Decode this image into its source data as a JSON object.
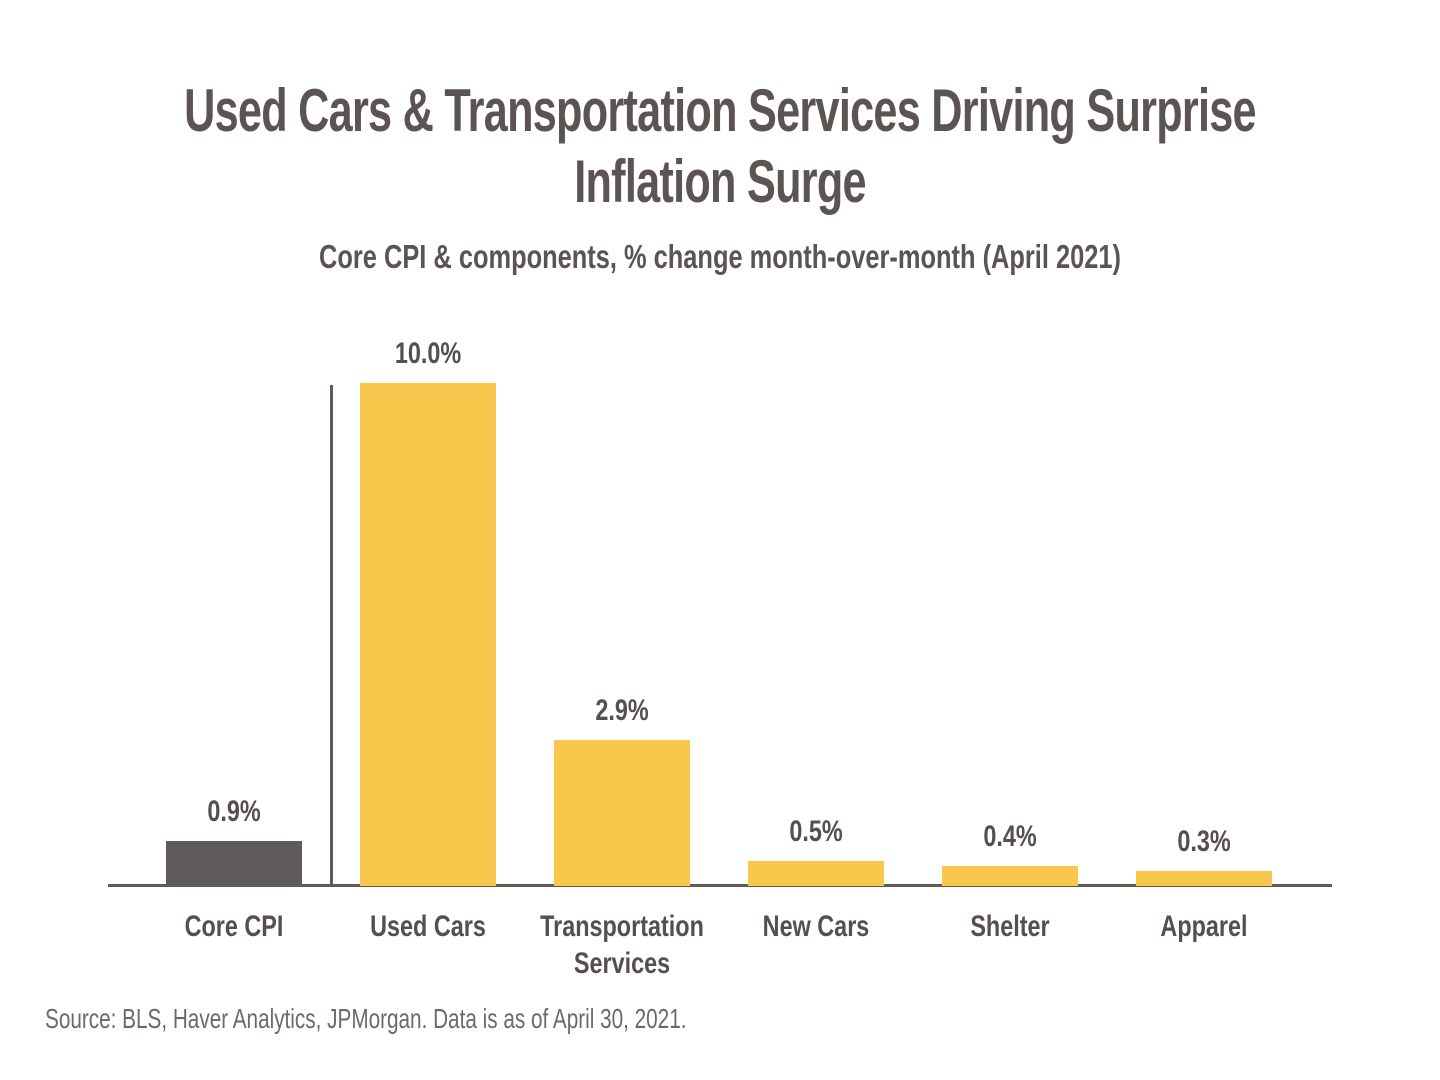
{
  "header": {
    "title_lines": [
      "Used Cars & Transportation Services Driving Surprise",
      "Inflation Surge"
    ],
    "subtitle": "Core CPI & components, % change month-over-month (April 2021)"
  },
  "chart_data": {
    "type": "bar",
    "title": "Used Cars & Transportation Services Driving Surprise Inflation Surge",
    "subtitle": "Core CPI & components, % change month-over-month (April 2021)",
    "categories": [
      "Core CPI",
      "Used Cars",
      "Transportation Services",
      "New Cars",
      "Shelter",
      "Apparel"
    ],
    "values": [
      0.9,
      10.0,
      2.9,
      0.5,
      0.4,
      0.3
    ],
    "value_labels": [
      "0.9%",
      "10.0%",
      "2.9%",
      "0.5%",
      "0.4%",
      "0.3%"
    ],
    "bar_colors": [
      "#605b5b",
      "#fac74d",
      "#fac74d",
      "#fac74d",
      "#fac74d",
      "#fac74d"
    ],
    "xlabel": "",
    "ylabel": "",
    "ylim": [
      0,
      10
    ],
    "grid": false,
    "legend": "none",
    "annotations": "Value labels above each bar; vertical divider line separates Core CPI from its components"
  },
  "footer": {
    "source": "Source: BLS, Haver Analytics, JPMorgan. Data is as of April 30, 2021."
  },
  "colors": {
    "background": "#ffffff",
    "bar_yellow": "#fac74d",
    "bar_gray": "#605b5b",
    "axis_line": "#5f5a58",
    "title_text": "#5b5452",
    "label_text": "#554f4d",
    "source_text": "#6e6966"
  }
}
